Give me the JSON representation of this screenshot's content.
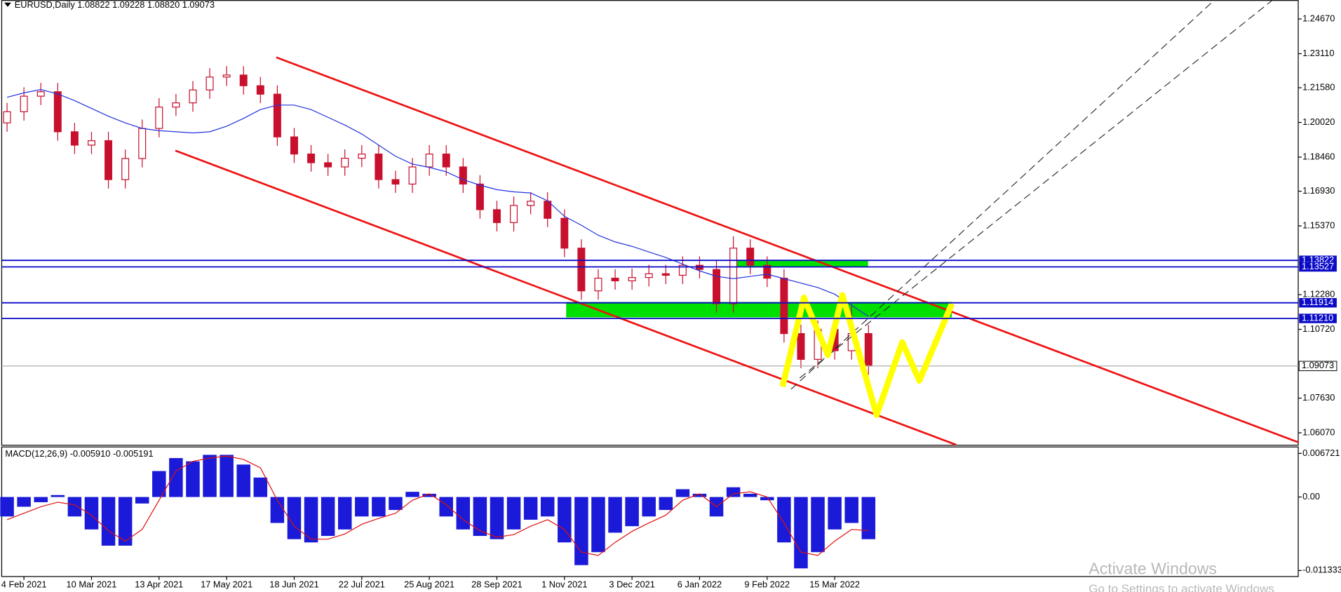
{
  "chart_data": [
    {
      "type": "candlestick",
      "title": "EURUSD,Daily  1.08822 1.09228 1.08820 1.09073",
      "categories": [
        null,
        "4 Feb 2021",
        null,
        null,
        null,
        "10 Mar 2021",
        null,
        null,
        null,
        "13 Apr 2021",
        null,
        null,
        null,
        "17 May 2021",
        null,
        null,
        null,
        "18 Jun 2021",
        null,
        null,
        null,
        "22 Jul 2021",
        null,
        null,
        null,
        "25 Aug 2021",
        null,
        null,
        null,
        "28 Sep 2021",
        null,
        null,
        null,
        "1 Nov 2021",
        null,
        null,
        null,
        "3 Dec 2021",
        null,
        null,
        null,
        "6 Jan 2022",
        null,
        null,
        null,
        "9 Feb 2022",
        null,
        null,
        null,
        "15 Mar 2022",
        null,
        null
      ],
      "open": [
        1.2,
        1.205,
        1.212,
        1.214,
        1.196,
        1.19,
        1.192,
        1.1745,
        1.184,
        1.1975,
        1.2071,
        1.209,
        1.2148,
        1.2206,
        1.2215,
        1.2167,
        1.2129,
        1.1937,
        1.186,
        1.1821,
        1.1802,
        1.1841,
        1.186,
        1.1745,
        1.1725,
        1.1802,
        1.186,
        1.1802,
        1.1725,
        1.161,
        1.1552,
        1.1629,
        1.1648,
        1.1571,
        1.1437,
        1.1245,
        1.1302,
        1.129,
        1.1305,
        1.1322,
        1.1315,
        1.136,
        1.1341,
        1.1187,
        1.1437,
        1.136,
        1.1302,
        1.1053,
        1.0937,
        1.1072,
        1.0976,
        1.1053
      ],
      "high": [
        1.209,
        1.216,
        1.218,
        1.218,
        1.2,
        1.196,
        1.196,
        1.188,
        1.2015,
        1.2111,
        1.213,
        1.2188,
        1.2246,
        1.2255,
        1.2255,
        1.2207,
        1.2169,
        1.1977,
        1.19,
        1.1861,
        1.1881,
        1.19,
        1.19,
        1.1785,
        1.1842,
        1.19,
        1.19,
        1.1842,
        1.1765,
        1.165,
        1.1669,
        1.1688,
        1.1688,
        1.1611,
        1.1477,
        1.1342,
        1.1342,
        1.1345,
        1.1362,
        1.1362,
        1.14,
        1.14,
        1.1381,
        1.149,
        1.1477,
        1.14,
        1.1342,
        1.1093,
        1.1112,
        1.1112,
        1.1185,
        1.1093
      ],
      "low": [
        1.196,
        1.201,
        1.208,
        1.192,
        1.186,
        1.186,
        1.1705,
        1.1705,
        1.18,
        1.1935,
        1.2031,
        1.205,
        1.2108,
        1.2166,
        1.2127,
        1.2089,
        1.1897,
        1.182,
        1.1781,
        1.1762,
        1.1762,
        1.1801,
        1.1705,
        1.1685,
        1.1685,
        1.1762,
        1.1762,
        1.1685,
        1.157,
        1.1512,
        1.1512,
        1.1589,
        1.1531,
        1.1397,
        1.1205,
        1.1205,
        1.125,
        1.125,
        1.1265,
        1.1275,
        1.1275,
        1.1301,
        1.1147,
        1.1147,
        1.132,
        1.1262,
        1.1013,
        1.0897,
        1.0897,
        1.0936,
        1.0936,
        1.0867
      ],
      "close": [
        1.205,
        1.212,
        1.214,
        1.196,
        1.19,
        1.192,
        1.1745,
        1.184,
        1.1975,
        1.2071,
        1.209,
        1.2148,
        1.2206,
        1.2215,
        1.2167,
        1.2129,
        1.1937,
        1.186,
        1.1821,
        1.1802,
        1.1841,
        1.186,
        1.1745,
        1.1725,
        1.1802,
        1.186,
        1.1802,
        1.1725,
        1.161,
        1.1552,
        1.1629,
        1.1648,
        1.1571,
        1.1437,
        1.1245,
        1.1302,
        1.129,
        1.1305,
        1.1322,
        1.1315,
        1.136,
        1.1341,
        1.1187,
        1.1437,
        1.136,
        1.1302,
        1.1053,
        1.0937,
        1.1072,
        1.0976,
        1.1053,
        1.09073
      ],
      "candle_color": "#c8102e",
      "series": [
        {
          "color": "#2233dd",
          "values": [
            1.2115,
            1.2135,
            1.215,
            1.213,
            1.21,
            1.2065,
            1.203,
            1.2,
            1.1975,
            1.1965,
            1.196,
            1.1955,
            1.196,
            1.1985,
            1.202,
            1.206,
            1.208,
            1.208,
            1.206,
            1.2025,
            1.199,
            1.195,
            1.19,
            1.185,
            1.1815,
            1.18,
            1.178,
            1.1745,
            1.172,
            1.17,
            1.169,
            1.1685,
            1.165,
            1.158,
            1.154,
            1.1495,
            1.1465,
            1.1445,
            1.142,
            1.1395,
            1.1365,
            1.1335,
            1.131,
            1.13,
            1.131,
            1.132,
            1.13,
            1.128,
            1.126,
            1.123,
            1.118,
            1.113
          ]
        }
      ],
      "levels": [
        {
          "value": 1.13822,
          "label": "1.13822"
        },
        {
          "value": 1.13527,
          "label": "1.13527"
        },
        {
          "value": 1.11914,
          "label": "1.11914"
        },
        {
          "value": 1.1121,
          "label": "1.11210"
        }
      ],
      "level_color": "#0a0ac8",
      "current_price": {
        "value": 1.09073,
        "label": "1.09073"
      },
      "ylim": [
        1.0553,
        1.2552
      ],
      "yticks": [
        {
          "value": 1.2467,
          "label": "1.24670"
        },
        {
          "value": 1.2311,
          "label": "1.23110"
        },
        {
          "value": 1.2158,
          "label": "1.21580"
        },
        {
          "value": 1.2002,
          "label": "1.20020"
        },
        {
          "value": 1.1846,
          "label": "1.18460"
        },
        {
          "value": 1.1693,
          "label": "1.16930"
        },
        {
          "value": 1.1537,
          "label": "1.15370"
        },
        {
          "value": 1.1228,
          "label": "1.12280"
        },
        {
          "value": 1.1072,
          "label": "1.10720"
        },
        {
          "value": 1.0763,
          "label": "1.07630"
        },
        {
          "value": 1.0607,
          "label": "1.06070"
        }
      ]
    },
    {
      "type": "macd",
      "title": "MACD(12,26,9) -0.005910 -0.005191",
      "series": [
        {
          "type": "bar",
          "color": "#1a1ad8",
          "values": [
            -0.003,
            -0.0015,
            -0.0008,
            0.0003,
            -0.003,
            -0.005,
            -0.0075,
            -0.0075,
            -0.001,
            0.004,
            0.006,
            0.0055,
            0.0065,
            0.0065,
            0.005,
            0.003,
            -0.004,
            -0.0065,
            -0.007,
            -0.006,
            -0.005,
            -0.003,
            -0.003,
            -0.002,
            0.0008,
            0.0005,
            -0.003,
            -0.005,
            -0.006,
            -0.0065,
            -0.005,
            -0.0035,
            -0.003,
            -0.007,
            -0.0105,
            -0.0085,
            -0.0055,
            -0.0045,
            -0.003,
            -0.002,
            0.0012,
            0.0005,
            -0.003,
            0.0015,
            0.0005,
            -0.0005,
            -0.007,
            -0.011,
            -0.0085,
            -0.005,
            -0.004,
            -0.0065
          ]
        },
        {
          "type": "line",
          "color": "#e01010",
          "values": [
            -0.0035,
            -0.0025,
            -0.0015,
            -0.0008,
            -0.0012,
            -0.0028,
            -0.0052,
            -0.0068,
            -0.005,
            -0.0005,
            0.004,
            0.0055,
            0.006,
            0.0063,
            0.0058,
            0.0045,
            -0.0005,
            -0.0045,
            -0.0065,
            -0.0065,
            -0.0057,
            -0.0042,
            -0.0033,
            -0.0025,
            -0.0005,
            0.0005,
            -0.0012,
            -0.0035,
            -0.0052,
            -0.0062,
            -0.0058,
            -0.0045,
            -0.0035,
            -0.005,
            -0.0085,
            -0.009,
            -0.007,
            -0.0053,
            -0.004,
            -0.0028,
            -0.0005,
            0.0005,
            -0.0015,
            0.0005,
            0.0008,
            0.0,
            -0.004,
            -0.0085,
            -0.009,
            -0.0068,
            -0.005,
            -0.0052
          ]
        }
      ],
      "ylim": [
        -0.01226,
        0.00778
      ],
      "yticks": [
        {
          "value": 0.006721,
          "label": "0.006721"
        },
        {
          "value": 0,
          "label": "0.00"
        },
        {
          "value": -0.011333,
          "label": "-0.011333"
        }
      ]
    }
  ],
  "watermark": [
    "Activate Windows",
    "Go to Settings to activate Windows"
  ]
}
